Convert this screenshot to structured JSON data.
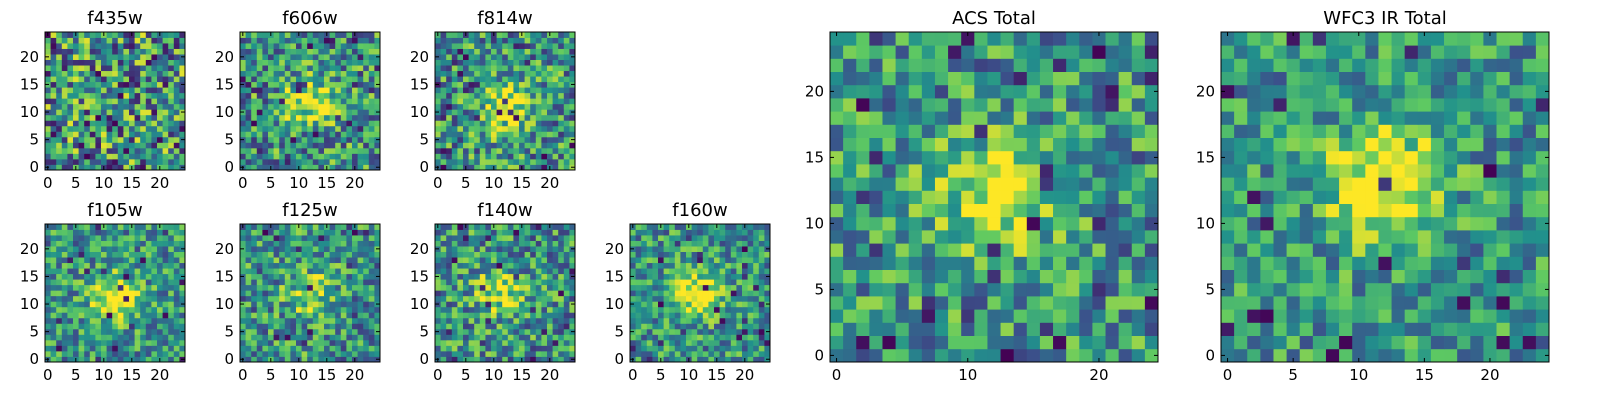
{
  "colormap": [
    "#440154",
    "#3b528b",
    "#21918c",
    "#5ec962",
    "#fde725"
  ],
  "chart_data": [
    {
      "type": "heatmap",
      "title": "f435w",
      "xlabel": "",
      "ylabel": "",
      "xlim": [
        0,
        24
      ],
      "ylim": [
        0,
        24
      ],
      "x_ticks": [
        0,
        5,
        10,
        15,
        20
      ],
      "y_ticks": [
        0,
        5,
        10,
        15,
        20
      ],
      "grid_size": 25,
      "seed": 11,
      "peak": [
        12,
        12
      ],
      "peak_strength": 0.0,
      "noise": 0.55,
      "dark_frac": 0.07
    },
    {
      "type": "heatmap",
      "title": "f606w",
      "xlabel": "",
      "ylabel": "",
      "xlim": [
        0,
        24
      ],
      "ylim": [
        0,
        24
      ],
      "x_ticks": [
        0,
        5,
        10,
        15,
        20
      ],
      "y_ticks": [
        0,
        5,
        10,
        15,
        20
      ],
      "grid_size": 25,
      "seed": 23,
      "peak": [
        12,
        12
      ],
      "peak_strength": 0.45,
      "noise": 0.45,
      "dark_frac": 0.04
    },
    {
      "type": "heatmap",
      "title": "f814w",
      "xlabel": "",
      "ylabel": "",
      "xlim": [
        0,
        24
      ],
      "ylim": [
        0,
        24
      ],
      "x_ticks": [
        0,
        5,
        10,
        15,
        20
      ],
      "y_ticks": [
        0,
        5,
        10,
        15,
        20
      ],
      "grid_size": 25,
      "seed": 37,
      "peak": [
        12,
        11
      ],
      "peak_strength": 0.45,
      "noise": 0.45,
      "dark_frac": 0.05
    },
    {
      "type": "heatmap",
      "title": "f105w",
      "xlabel": "",
      "ylabel": "",
      "xlim": [
        0,
        24
      ],
      "ylim": [
        0,
        24
      ],
      "x_ticks": [
        0,
        5,
        10,
        15,
        20
      ],
      "y_ticks": [
        0,
        5,
        10,
        15,
        20
      ],
      "grid_size": 25,
      "seed": 41,
      "peak": [
        12,
        11
      ],
      "peak_strength": 0.5,
      "noise": 0.38,
      "dark_frac": 0.03
    },
    {
      "type": "heatmap",
      "title": "f125w",
      "xlabel": "",
      "ylabel": "",
      "xlim": [
        0,
        24
      ],
      "ylim": [
        0,
        24
      ],
      "x_ticks": [
        0,
        5,
        10,
        15,
        20
      ],
      "y_ticks": [
        0,
        5,
        10,
        15,
        20
      ],
      "grid_size": 25,
      "seed": 53,
      "peak": [
        12,
        12
      ],
      "peak_strength": 0.3,
      "noise": 0.42,
      "dark_frac": 0.03
    },
    {
      "type": "heatmap",
      "title": "f140w",
      "xlabel": "",
      "ylabel": "",
      "xlim": [
        0,
        24
      ],
      "ylim": [
        0,
        24
      ],
      "x_ticks": [
        0,
        5,
        10,
        15,
        20
      ],
      "y_ticks": [
        0,
        5,
        10,
        15,
        20
      ],
      "grid_size": 25,
      "seed": 67,
      "peak": [
        11,
        12
      ],
      "peak_strength": 0.35,
      "noise": 0.42,
      "dark_frac": 0.03
    },
    {
      "type": "heatmap",
      "title": "f160w",
      "xlabel": "",
      "ylabel": "",
      "xlim": [
        0,
        24
      ],
      "ylim": [
        0,
        24
      ],
      "x_ticks": [
        0,
        5,
        10,
        15,
        20
      ],
      "y_ticks": [
        0,
        5,
        10,
        15,
        20
      ],
      "grid_size": 25,
      "seed": 79,
      "peak": [
        11,
        12
      ],
      "peak_strength": 0.5,
      "noise": 0.38,
      "dark_frac": 0.04
    },
    {
      "type": "heatmap",
      "title": "ACS Total",
      "xlabel": "",
      "ylabel": "",
      "xlim": [
        0,
        24
      ],
      "ylim": [
        0,
        24
      ],
      "x_ticks": [
        0,
        10,
        20
      ],
      "y_ticks": [
        0,
        5,
        10,
        15,
        20
      ],
      "grid_size": 25,
      "seed": 97,
      "peak": [
        12,
        12
      ],
      "peak_strength": 0.5,
      "noise": 0.4,
      "dark_frac": 0.05
    },
    {
      "type": "heatmap",
      "title": "WFC3 IR Total",
      "xlabel": "",
      "ylabel": "",
      "xlim": [
        0,
        24
      ],
      "ylim": [
        0,
        24
      ],
      "x_ticks": [
        0,
        5,
        10,
        15,
        20
      ],
      "y_ticks": [
        0,
        5,
        10,
        15,
        20
      ],
      "grid_size": 25,
      "seed": 113,
      "peak": [
        12,
        13
      ],
      "peak_strength": 0.6,
      "noise": 0.35,
      "dark_frac": 0.04
    }
  ]
}
